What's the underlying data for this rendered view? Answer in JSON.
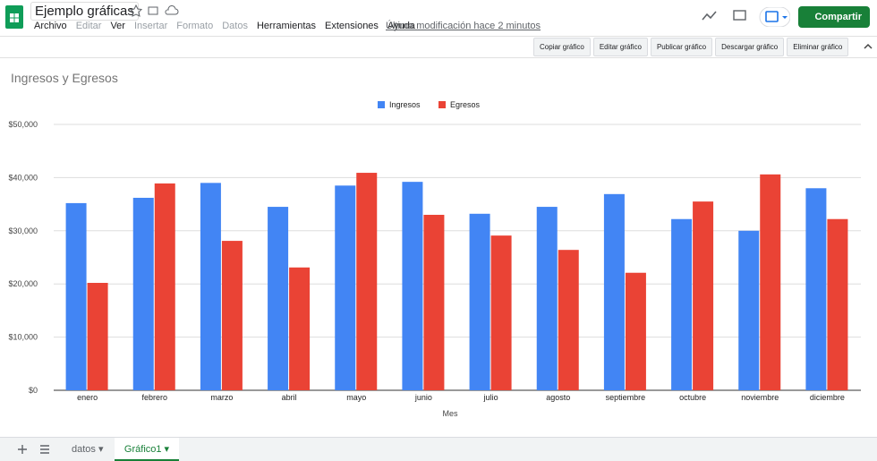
{
  "header": {
    "title": "Ejemplo gráficas",
    "menu": [
      "Archivo",
      "Editar",
      "Ver",
      "Insertar",
      "Formato",
      "Datos",
      "Herramientas",
      "Extensiones",
      "Ayuda"
    ],
    "last_modified": "Última modificación hace 2 minutos",
    "share": "Compartir"
  },
  "chart_toolbar": [
    "Copiar gráfico",
    "Editar gráfico",
    "Publicar gráfico",
    "Descargar gráfico",
    "Eliminar gráfico"
  ],
  "sheet_tabs": [
    "datos",
    "Gráfico1"
  ],
  "chart_data": {
    "type": "bar",
    "title": "Ingresos y Egresos",
    "x_label": "Mes",
    "categories": [
      "enero",
      "febrero",
      "marzo",
      "abril",
      "mayo",
      "junio",
      "julio",
      "agosto",
      "septiembre",
      "octubre",
      "noviembre",
      "diciembre"
    ],
    "series": [
      {
        "name": "Ingresos",
        "color": "#4285f4",
        "values": [
          35200,
          36200,
          39000,
          34500,
          38500,
          39200,
          33200,
          34500,
          36900,
          32200,
          30000,
          38000
        ]
      },
      {
        "name": "Egresos",
        "color": "#ea4335",
        "values": [
          20200,
          38900,
          28100,
          23100,
          40900,
          33000,
          29100,
          26400,
          22100,
          35500,
          40600,
          32200
        ]
      }
    ],
    "ylim": [
      0,
      50000
    ],
    "yticks": [
      {
        "value": 0,
        "label": "$0"
      },
      {
        "value": 10000,
        "label": "$10,000"
      },
      {
        "value": 20000,
        "label": "$20,000"
      },
      {
        "value": 30000,
        "label": "$30,000"
      },
      {
        "value": 40000,
        "label": "$40,000"
      },
      {
        "value": 50000,
        "label": "$50,000"
      }
    ],
    "grid": true,
    "legend": "top"
  }
}
